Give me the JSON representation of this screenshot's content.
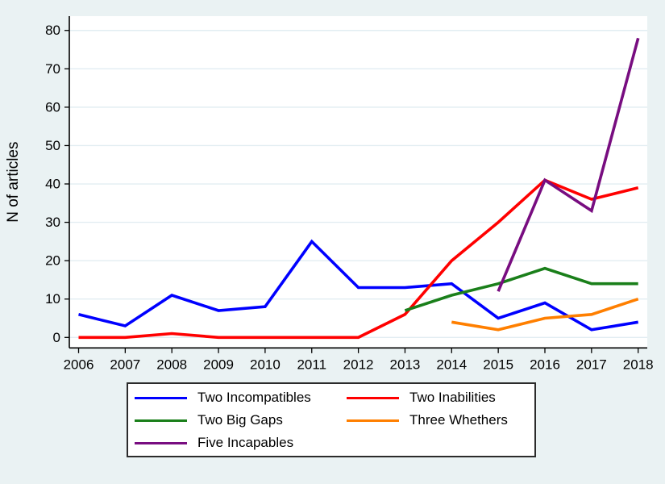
{
  "figure": {
    "background_color": "#eaf2f3",
    "plot_background_color": "#ffffff",
    "gridline_color": "#e2edf2",
    "axis_color": "#000000"
  },
  "chart_data": {
    "type": "line",
    "title": "",
    "xlabel": "",
    "ylabel": "N of articles",
    "x_ticks": [
      2006,
      2007,
      2008,
      2009,
      2010,
      2011,
      2012,
      2013,
      2014,
      2015,
      2016,
      2017,
      2018
    ],
    "ylim": [
      0,
      80
    ],
    "ytick_step": 10,
    "grid": "horizontal-only",
    "legend_position": "bottom-center-boxed",
    "legend_columns": 2,
    "series": [
      {
        "name": "Two Incompatibles",
        "color": "#0000ff",
        "x": [
          2006,
          2007,
          2008,
          2009,
          2010,
          2011,
          2012,
          2013,
          2014,
          2015,
          2016,
          2017,
          2018
        ],
        "values": [
          6,
          3,
          11,
          7,
          8,
          25,
          13,
          13,
          14,
          5,
          9,
          2,
          4
        ]
      },
      {
        "name": "Two Inabilities",
        "color": "#ff0000",
        "x": [
          2006,
          2007,
          2008,
          2009,
          2010,
          2011,
          2012,
          2013,
          2014,
          2015,
          2016,
          2017,
          2018
        ],
        "values": [
          0,
          0,
          1,
          0,
          0,
          0,
          0,
          6,
          20,
          30,
          41,
          36,
          39
        ]
      },
      {
        "name": "Two Big Gaps",
        "color": "#1a7f1a",
        "x": [
          2013,
          2014,
          2015,
          2016,
          2017,
          2018
        ],
        "values": [
          7,
          11,
          14,
          18,
          14,
          14
        ]
      },
      {
        "name": "Three Whethers",
        "color": "#ff7f00",
        "x": [
          2014,
          2015,
          2016,
          2017,
          2018
        ],
        "values": [
          4,
          2,
          5,
          6,
          10
        ]
      },
      {
        "name": "Five Incapables",
        "color": "#780d80",
        "x": [
          2015,
          2016,
          2017,
          2018
        ],
        "values": [
          12,
          41,
          33,
          78
        ]
      }
    ]
  }
}
